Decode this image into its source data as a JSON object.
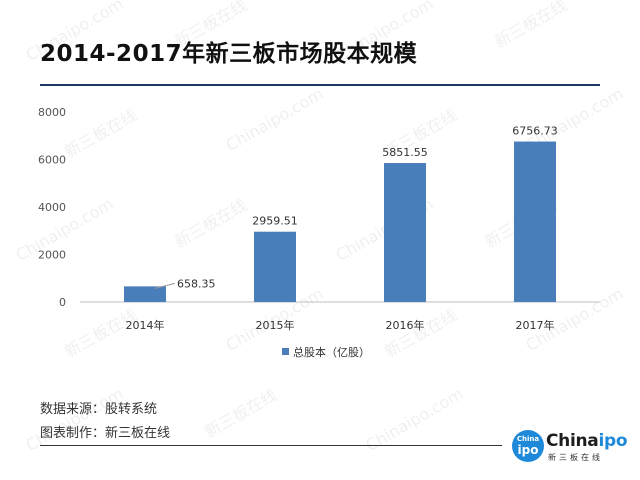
{
  "title": "2014-2017年新三板市场股本规模",
  "watermark": {
    "logo_text": "Chinaipo.com",
    "cn_text": "新三板在线"
  },
  "footer": {
    "source": "数据来源：股转系统",
    "maker": "图表制作：新三板在线"
  },
  "logo": {
    "badge_top": "China",
    "badge_bottom": "ipo",
    "word_main": "China",
    "word_accent": "ipo",
    "sub": "新三板在线"
  },
  "colors": {
    "bar": "#4a7ebb",
    "title_rule": "#1f3a5f"
  },
  "chart_data": {
    "type": "bar",
    "title": "",
    "xlabel": "",
    "ylabel": "",
    "categories": [
      "2014年",
      "2015年",
      "2016年",
      "2017年"
    ],
    "series": [
      {
        "name": "总股本（亿股）",
        "values": [
          658.35,
          2959.51,
          5851.55,
          6756.73
        ]
      }
    ],
    "data_labels": [
      "658.35",
      "2959.51",
      "5851.55",
      "6756.73"
    ],
    "yticks": [
      "0",
      "2000",
      "4000",
      "6000",
      "8000"
    ],
    "ylim": [
      0,
      8000
    ],
    "grid": false,
    "legend": "bottom"
  }
}
